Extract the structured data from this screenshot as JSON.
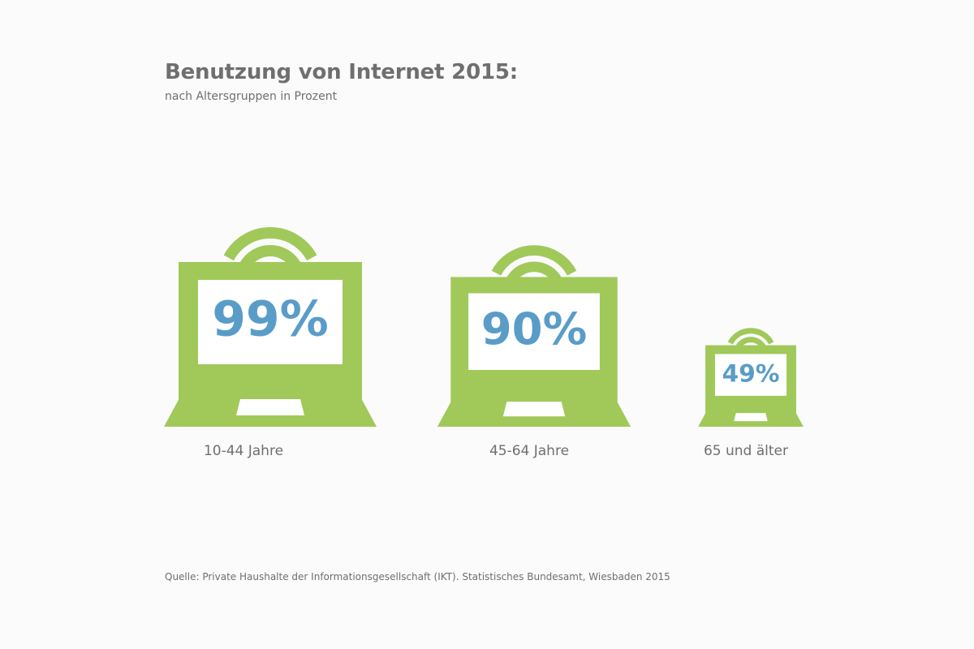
{
  "header": {
    "title": "Benutzung von Internet 2015:",
    "subtitle": "nach Altersgruppen in Prozent"
  },
  "chart_data": {
    "type": "bar",
    "title": "Benutzung von Internet 2015:",
    "subtitle": "nach Altersgruppen in Prozent",
    "unit": "%",
    "categories": [
      "10-44 Jahre",
      "45-64 Jahre",
      "65 und älter"
    ],
    "values": [
      99,
      90,
      49
    ],
    "value_labels": [
      "99%",
      "90%",
      "49%"
    ],
    "marker": "laptop-wifi-icon",
    "colors": {
      "laptop": "#a0c95a",
      "value_text": "#5a9cc8",
      "screen": "#ffffff"
    }
  },
  "footer": {
    "source": "Quelle: Private Haushalte der Informationsgesellschaft (IKT).  Statistisches Bundesamt, Wiesbaden 2015"
  }
}
